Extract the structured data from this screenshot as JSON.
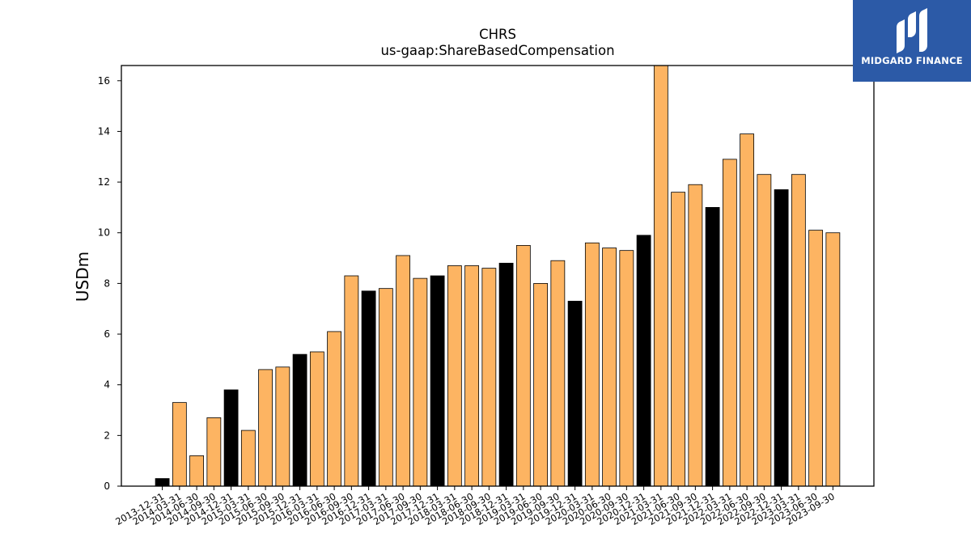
{
  "brand": {
    "name": "MIDGARD FINANCE",
    "bg_color": "#2c5aa7"
  },
  "chart_data": {
    "type": "bar",
    "title": "CHRS",
    "subtitle": "us-gaap:ShareBasedCompensation",
    "xlabel": "",
    "ylabel": "USDm",
    "ylim": [
      0,
      16.6
    ],
    "yticks": [
      0,
      2,
      4,
      6,
      8,
      10,
      12,
      14,
      16
    ],
    "grid": false,
    "colors": {
      "quarter": "#fdb462",
      "year_end": "#000000",
      "edge": "#000000"
    },
    "categories": [
      "2013-12-31",
      "2014-03-31",
      "2014-06-30",
      "2014-09-30",
      "2014-12-31",
      "2015-03-31",
      "2015-06-30",
      "2015-09-30",
      "2015-12-31",
      "2016-03-31",
      "2016-06-30",
      "2016-09-30",
      "2016-12-31",
      "2017-03-31",
      "2017-06-30",
      "2017-09-30",
      "2017-12-31",
      "2018-03-31",
      "2018-06-30",
      "2018-09-30",
      "2018-12-31",
      "2019-03-31",
      "2019-06-30",
      "2019-09-30",
      "2019-12-31",
      "2020-03-31",
      "2020-06-30",
      "2020-09-30",
      "2020-12-31",
      "2021-03-31",
      "2021-06-30",
      "2021-09-30",
      "2021-12-31",
      "2022-03-31",
      "2022-06-30",
      "2022-09-30",
      "2022-12-31",
      "2023-03-31",
      "2023-06-30",
      "2023-09-30"
    ],
    "values": [
      0.3,
      3.3,
      1.2,
      2.7,
      3.8,
      2.2,
      4.6,
      4.7,
      5.2,
      5.3,
      6.1,
      8.3,
      7.7,
      7.8,
      9.1,
      8.2,
      8.3,
      8.7,
      8.7,
      8.6,
      8.8,
      9.5,
      8.0,
      8.9,
      7.3,
      9.6,
      9.4,
      9.3,
      9.9,
      16.6,
      11.6,
      11.9,
      11.0,
      12.9,
      13.9,
      12.3,
      11.7,
      12.3,
      10.1,
      10.0
    ]
  }
}
